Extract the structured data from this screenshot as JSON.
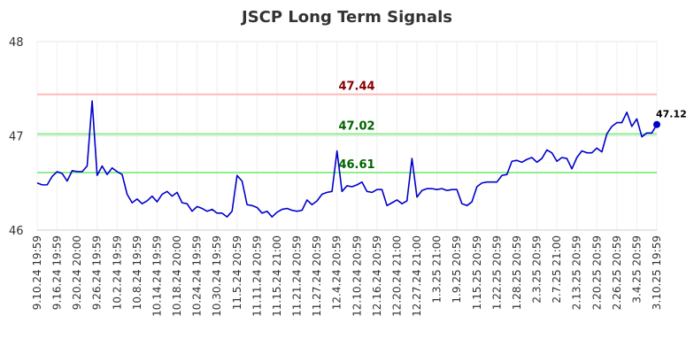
{
  "chart_data": {
    "type": "line",
    "title": "JSCP Long Term Signals",
    "ylim": [
      46,
      48
    ],
    "yticks": [
      "46",
      "47",
      "48"
    ],
    "grid": true,
    "x_tick_labels": [
      "9.10.24 19:59",
      "9.16.24 19:59",
      "9.20.24 20:00",
      "9.26.24 19:59",
      "10.2.24 19:59",
      "10.8.24 19:59",
      "10.14.24 19:59",
      "10.18.24 20:00",
      "10.24.24 19:59",
      "10.30.24 19:59",
      "11.5.24 20:59",
      "11.11.24 20:59",
      "11.15.24 21:00",
      "11.21.24 20:59",
      "11.27.24 20:59",
      "12.4.24 20:59",
      "12.10.24 20:59",
      "12.16.24 20:59",
      "12.20.24 21:00",
      "12.27.24 21:00",
      "1.3.25 21:00",
      "1.9.25 20:59",
      "1.15.25 20:59",
      "1.22.25 20:59",
      "1.28.25 20:59",
      "2.3.25 20:59",
      "2.7.25 21:00",
      "2.13.25 20:59",
      "2.20.25 20:59",
      "2.26.25 20:59",
      "3.4.25 20:59",
      "3.10.25 19:59"
    ],
    "levels": [
      {
        "value": 47.44,
        "label": "47.44",
        "line_color": "#ffbbbb",
        "text_color": "#8b0000"
      },
      {
        "value": 47.02,
        "label": "47.02",
        "line_color": "#90ee90",
        "text_color": "#006400"
      },
      {
        "value": 46.61,
        "label": "46.61",
        "line_color": "#90ee90",
        "text_color": "#006400"
      }
    ],
    "series": [
      {
        "color": "#0000cc",
        "values": [
          46.5,
          46.48,
          46.48,
          46.57,
          46.62,
          46.6,
          46.52,
          46.63,
          46.62,
          46.62,
          46.68,
          47.37,
          46.58,
          46.68,
          46.59,
          46.66,
          46.62,
          46.59,
          46.38,
          46.29,
          46.33,
          46.28,
          46.31,
          46.36,
          46.3,
          46.38,
          46.41,
          46.36,
          46.4,
          46.29,
          46.28,
          46.2,
          46.25,
          46.23,
          46.2,
          46.22,
          46.18,
          46.18,
          46.14,
          46.2,
          46.58,
          46.52,
          46.27,
          46.26,
          46.24,
          46.18,
          46.2,
          46.14,
          46.19,
          46.22,
          46.23,
          46.21,
          46.2,
          46.21,
          46.32,
          46.27,
          46.31,
          46.38,
          46.4,
          46.41,
          46.84,
          46.41,
          46.47,
          46.46,
          46.48,
          46.51,
          46.41,
          46.4,
          46.43,
          46.43,
          46.26,
          46.29,
          46.32,
          46.28,
          46.31,
          46.76,
          46.35,
          46.42,
          46.44,
          46.44,
          46.43,
          46.44,
          46.42,
          46.43,
          46.43,
          46.28,
          46.26,
          46.3,
          46.46,
          46.5,
          46.51,
          46.51,
          46.51,
          46.58,
          46.59,
          46.73,
          46.74,
          46.72,
          46.75,
          46.77,
          46.72,
          46.76,
          46.85,
          46.82,
          46.73,
          46.77,
          46.76,
          46.65,
          46.77,
          46.84,
          46.82,
          46.82,
          46.87,
          46.83,
          47.02,
          47.1,
          47.14,
          47.14,
          47.25,
          47.1,
          47.18,
          46.99,
          47.03,
          47.03,
          47.12
        ]
      }
    ],
    "last_value_label": "47.12"
  }
}
